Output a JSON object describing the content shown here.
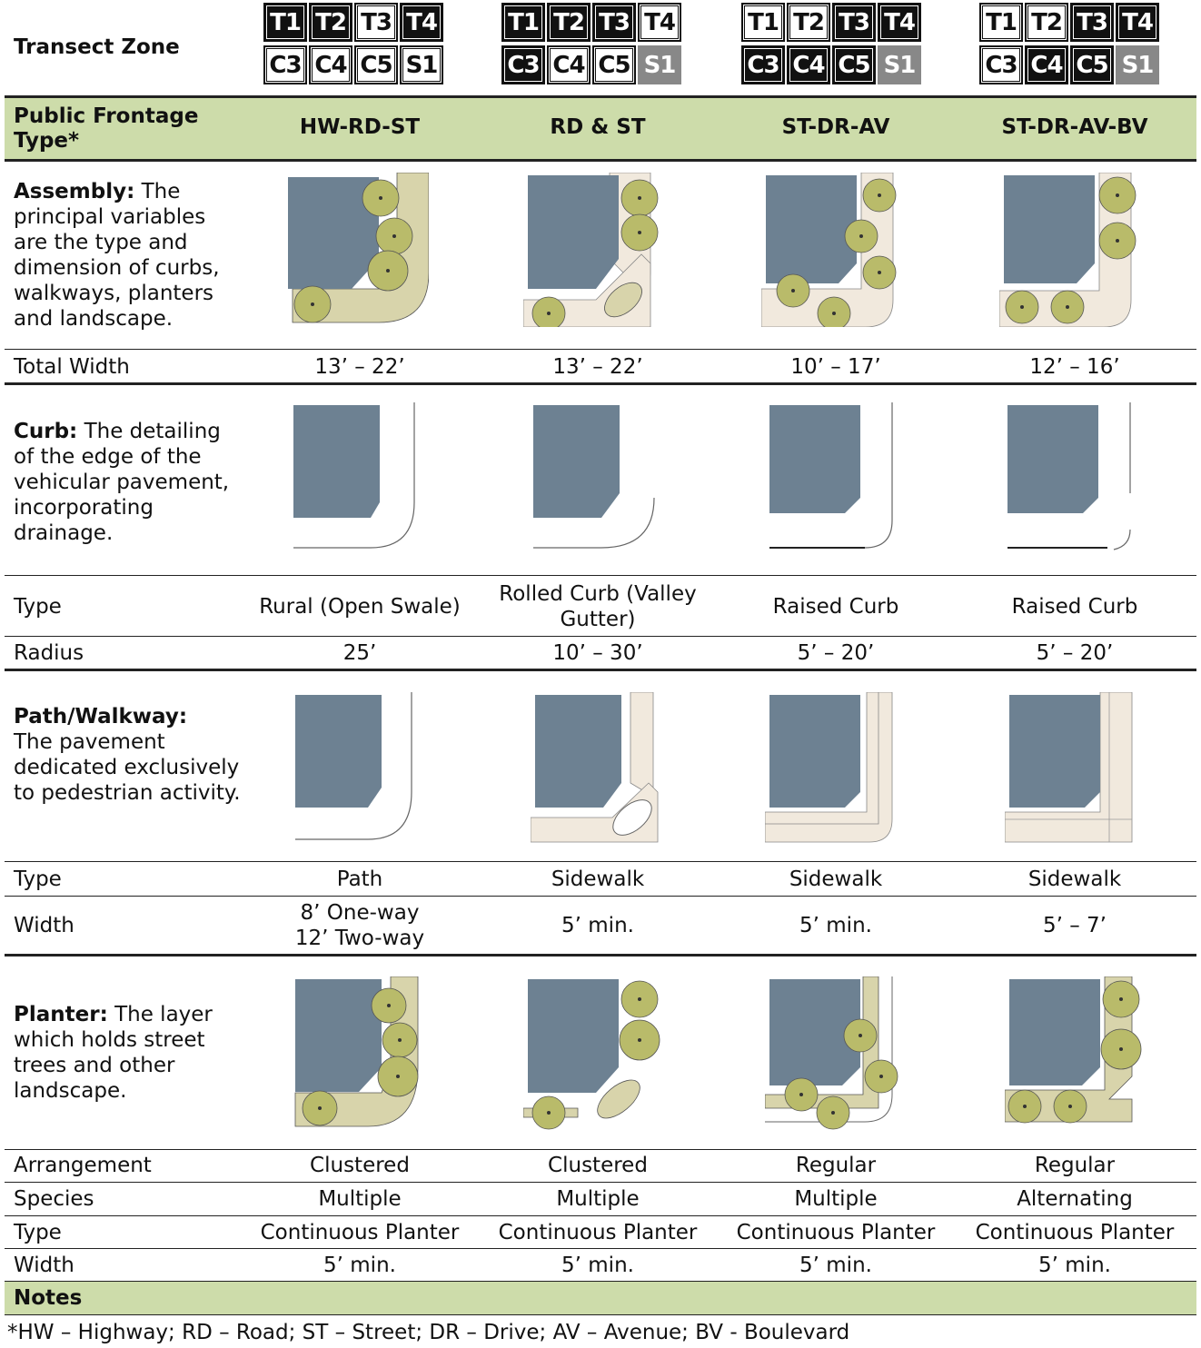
{
  "header": {
    "transect_label": "Transect Zone",
    "frontage_label": "Public Frontage Type*",
    "columns": [
      {
        "frontage": "HW-RD-ST",
        "zones": [
          {
            "name": "T1",
            "state": "on"
          },
          {
            "name": "T2",
            "state": "on"
          },
          {
            "name": "T3",
            "state": "off"
          },
          {
            "name": "T4",
            "state": "on"
          },
          {
            "name": "C3",
            "state": "off"
          },
          {
            "name": "C4",
            "state": "off"
          },
          {
            "name": "C5",
            "state": "off"
          },
          {
            "name": "S1",
            "state": "off"
          }
        ]
      },
      {
        "frontage": "RD & ST",
        "zones": [
          {
            "name": "T1",
            "state": "on"
          },
          {
            "name": "T2",
            "state": "on"
          },
          {
            "name": "T3",
            "state": "on"
          },
          {
            "name": "T4",
            "state": "off"
          },
          {
            "name": "C3",
            "state": "on"
          },
          {
            "name": "C4",
            "state": "off"
          },
          {
            "name": "C5",
            "state": "off"
          },
          {
            "name": "S1",
            "state": "na"
          }
        ]
      },
      {
        "frontage": "ST-DR-AV",
        "zones": [
          {
            "name": "T1",
            "state": "off"
          },
          {
            "name": "T2",
            "state": "off"
          },
          {
            "name": "T3",
            "state": "on"
          },
          {
            "name": "T4",
            "state": "on"
          },
          {
            "name": "C3",
            "state": "on"
          },
          {
            "name": "C4",
            "state": "on"
          },
          {
            "name": "C5",
            "state": "on"
          },
          {
            "name": "S1",
            "state": "na"
          }
        ]
      },
      {
        "frontage": "ST-DR-AV-BV",
        "zones": [
          {
            "name": "T1",
            "state": "off"
          },
          {
            "name": "T2",
            "state": "off"
          },
          {
            "name": "T3",
            "state": "on"
          },
          {
            "name": "T4",
            "state": "on"
          },
          {
            "name": "C3",
            "state": "off"
          },
          {
            "name": "C4",
            "state": "on"
          },
          {
            "name": "C5",
            "state": "on"
          },
          {
            "name": "S1",
            "state": "na"
          }
        ]
      }
    ]
  },
  "assembly": {
    "title": "Assembly:",
    "desc": "The principal variables are the type and dimension of curbs, walkways, planters and landscape.",
    "total_width_label": "Total Width",
    "total_width": [
      "13’ – 22’",
      "13’ – 22’",
      "10’ – 17’",
      "12’ – 16’"
    ]
  },
  "curb": {
    "title": "Curb:",
    "desc": "The detailing of the edge of the vehicular pavement, incorporating drainage.",
    "type_label": "Type",
    "types": [
      "Rural (Open Swale)",
      "Rolled Curb (Valley Gutter)",
      "Raised Curb",
      "Raised Curb"
    ],
    "radius_label": "Radius",
    "radius": [
      "25’",
      "10’ – 30’",
      "5’ – 20’",
      "5’ – 20’"
    ]
  },
  "path": {
    "title": "Path/Walkway:",
    "desc": "The pavement dedicated exclusively to pedestrian activity.",
    "type_label": "Type",
    "types": [
      "Path",
      "Sidewalk",
      "Sidewalk",
      "Sidewalk"
    ],
    "width_label": "Width",
    "width_col1_line1": "8’ One-way",
    "width_col1_line2": "12’ Two-way",
    "widths": [
      "5’ min.",
      "5’ min.",
      "5’ – 7’"
    ]
  },
  "planter": {
    "title": "Planter:",
    "desc": "The layer which holds street trees and other landscape.",
    "arrangement_label": "Arrangement",
    "arrangement": [
      "Clustered",
      "Clustered",
      "Regular",
      "Regular"
    ],
    "species_label": "Species",
    "species": [
      "Multiple",
      "Multiple",
      "Multiple",
      "Alternating"
    ],
    "type_label": "Type",
    "types": [
      "Continuous Planter",
      "Continuous Planter",
      "Continuous Planter",
      "Continuous Planter"
    ],
    "width_label": "Width",
    "widths": [
      "5’ min.",
      "5’ min.",
      "5’ min.",
      "5’ min."
    ]
  },
  "notes": {
    "title": "Notes",
    "text": "*HW – Highway; RD – Road; ST – Street; DR – Drive; AV – Avenue; BV - Boulevard"
  },
  "colors": {
    "header_green": "#cddcaa",
    "block_blue": "#6d8192",
    "tree_green": "#b9bb6a",
    "planter_green": "#d8d4ab",
    "walk_cream": "#f1e9dd"
  }
}
